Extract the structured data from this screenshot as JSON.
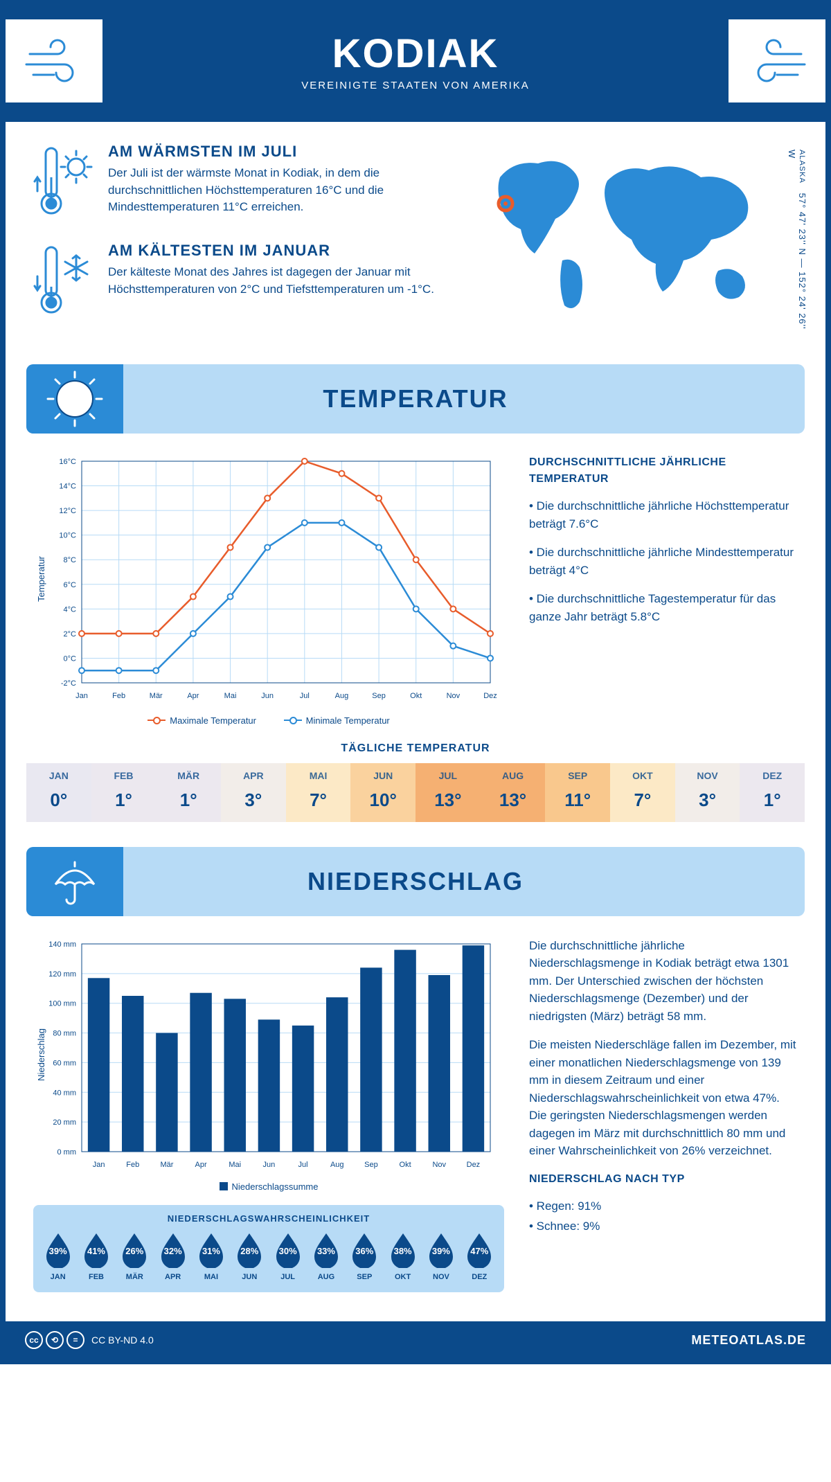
{
  "header": {
    "title": "KODIAK",
    "subtitle": "VEREINIGTE STAATEN VON AMERIKA"
  },
  "coords": {
    "lat": "57° 47' 23'' N",
    "lon": "152° 24' 26'' W",
    "region": "ALASKA"
  },
  "warm": {
    "title": "AM WÄRMSTEN IM JULI",
    "text": "Der Juli ist der wärmste Monat in Kodiak, in dem die durchschnittlichen Höchsttemperaturen 16°C und die Mindesttemperaturen 11°C erreichen."
  },
  "cold": {
    "title": "AM KÄLTESTEN IM JANUAR",
    "text": "Der kälteste Monat des Jahres ist dagegen der Januar mit Höchsttemperaturen von 2°C und Tiefsttemperaturen um -1°C."
  },
  "temp_section": {
    "title": "TEMPERATUR",
    "side_title": "DURCHSCHNITTLICHE JÄHRLICHE TEMPERATUR",
    "bullet1": "• Die durchschnittliche jährliche Höchsttemperatur beträgt 7.6°C",
    "bullet2": "• Die durchschnittliche jährliche Mindesttemperatur beträgt 4°C",
    "bullet3": "• Die durchschnittliche Tagestemperatur für das ganze Jahr beträgt 5.8°C",
    "daily_title": "TÄGLICHE TEMPERATUR",
    "legend_max": "Maximale Temperatur",
    "legend_min": "Minimale Temperatur",
    "y_label": "Temperatur",
    "months": [
      "Jan",
      "Feb",
      "Mär",
      "Apr",
      "Mai",
      "Jun",
      "Jul",
      "Aug",
      "Sep",
      "Okt",
      "Nov",
      "Dez"
    ],
    "y_ticks": [
      -2,
      0,
      2,
      4,
      6,
      8,
      10,
      12,
      14,
      16
    ],
    "y_tick_labels": [
      "-2°C",
      "0°C",
      "2°C",
      "4°C",
      "6°C",
      "8°C",
      "10°C",
      "12°C",
      "14°C",
      "16°C"
    ],
    "ylim": [
      -2,
      16
    ],
    "max_series": [
      2,
      2,
      2,
      5,
      9,
      13,
      16,
      15,
      13,
      8,
      4,
      2
    ],
    "min_series": [
      -1,
      -1,
      -1,
      2,
      5,
      9,
      11,
      11,
      9,
      4,
      1,
      0
    ],
    "max_color": "#e85c2b",
    "min_color": "#2b8bd6",
    "grid_color": "#b7dbf6"
  },
  "daily_table": {
    "months": [
      "JAN",
      "FEB",
      "MÄR",
      "APR",
      "MAI",
      "JUN",
      "JUL",
      "AUG",
      "SEP",
      "OKT",
      "NOV",
      "DEZ"
    ],
    "values": [
      "0°",
      "1°",
      "1°",
      "3°",
      "7°",
      "10°",
      "13°",
      "13°",
      "11°",
      "7°",
      "3°",
      "1°"
    ],
    "bg_colors": [
      "#e9e8f1",
      "#ece8ef",
      "#ece8ef",
      "#f2ede9",
      "#fce9c6",
      "#fad29e",
      "#f5b072",
      "#f5b072",
      "#f9c88d",
      "#fce9c6",
      "#f2ede9",
      "#ece8ef"
    ]
  },
  "precip_section": {
    "title": "NIEDERSCHLAG",
    "y_label": "Niederschlag",
    "months": [
      "Jan",
      "Feb",
      "Mär",
      "Apr",
      "Mai",
      "Jun",
      "Jul",
      "Aug",
      "Sep",
      "Okt",
      "Nov",
      "Dez"
    ],
    "values": [
      117,
      105,
      80,
      107,
      103,
      89,
      85,
      104,
      124,
      136,
      119,
      139
    ],
    "y_ticks": [
      0,
      20,
      40,
      60,
      80,
      100,
      120,
      140
    ],
    "y_tick_labels": [
      "0 mm",
      "20 mm",
      "40 mm",
      "60 mm",
      "80 mm",
      "100 mm",
      "120 mm",
      "140 mm"
    ],
    "ylim": [
      0,
      140
    ],
    "bar_color": "#0b4a8a",
    "legend": "Niederschlagssumme",
    "text1": "Die durchschnittliche jährliche Niederschlagsmenge in Kodiak beträgt etwa 1301 mm. Der Unterschied zwischen der höchsten Niederschlagsmenge (Dezember) und der niedrigsten (März) beträgt 58 mm.",
    "text2": "Die meisten Niederschläge fallen im Dezember, mit einer monatlichen Niederschlagsmenge von 139 mm in diesem Zeitraum und einer Niederschlagswahrscheinlichkeit von etwa 47%. Die geringsten Niederschlagsmengen werden dagegen im März mit durchschnittlich 80 mm und einer Wahrscheinlichkeit von 26% verzeichnet.",
    "type_title": "NIEDERSCHLAG NACH TYP",
    "type1": "• Regen: 91%",
    "type2": "• Schnee: 9%"
  },
  "probability": {
    "title": "NIEDERSCHLAGSWAHRSCHEINLICHKEIT",
    "months": [
      "JAN",
      "FEB",
      "MÄR",
      "APR",
      "MAI",
      "JUN",
      "JUL",
      "AUG",
      "SEP",
      "OKT",
      "NOV",
      "DEZ"
    ],
    "values": [
      "39%",
      "41%",
      "26%",
      "32%",
      "31%",
      "28%",
      "30%",
      "33%",
      "36%",
      "38%",
      "39%",
      "47%"
    ],
    "drop_color": "#0b4a8a"
  },
  "footer": {
    "license": "CC BY-ND 4.0",
    "site": "METEOATLAS.DE"
  },
  "colors": {
    "primary": "#0b4a8a",
    "light": "#b7dbf6",
    "accent": "#2b8bd6"
  }
}
